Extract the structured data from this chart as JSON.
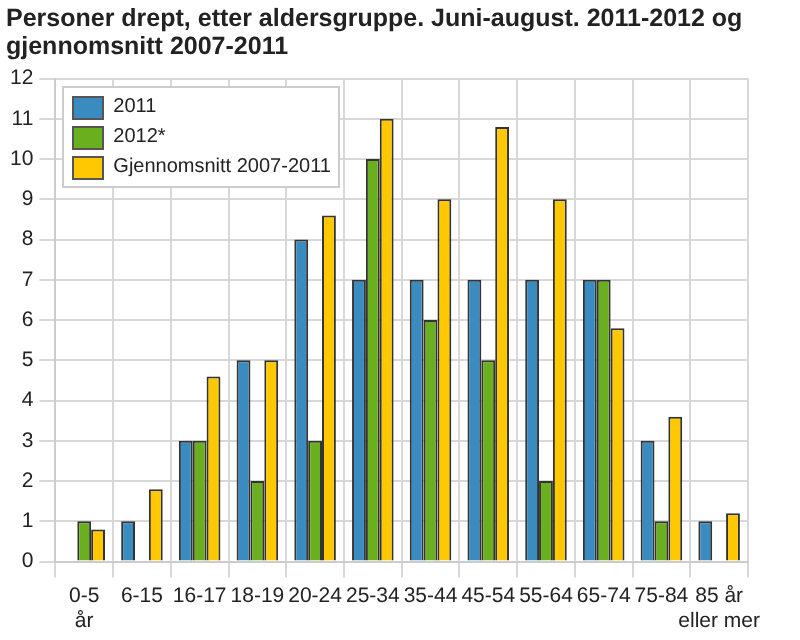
{
  "chart_data": {
    "type": "bar",
    "title": "Personer drept, etter aldersgruppe. Juni-august. 2011-2012 og gjennomsnitt 2007-2011",
    "categories": [
      "0-5\når",
      "6-15",
      "16-17",
      "18-19",
      "20-24",
      "25-34",
      "35-44",
      "45-54",
      "55-64",
      "65-74",
      "75-84",
      "85 år\neller mer"
    ],
    "series": [
      {
        "name": "2011",
        "color": "#3a8cc0",
        "values": [
          0,
          1,
          3,
          5,
          8,
          7,
          7,
          7,
          7,
          7,
          3,
          1
        ]
      },
      {
        "name": "2012*",
        "color": "#6aaf1e",
        "values": [
          1,
          0,
          3,
          2,
          3,
          10,
          6,
          5,
          2,
          7,
          1,
          0
        ]
      },
      {
        "name": "Gjennomsnitt 2007-2011",
        "color": "#ffc800",
        "values": [
          0.8,
          1.8,
          4.6,
          5,
          8.6,
          11,
          9,
          10.8,
          9,
          5.8,
          3.6,
          1.2
        ]
      }
    ],
    "ylim": [
      0,
      12
    ],
    "yticks": [
      0,
      1,
      2,
      3,
      4,
      5,
      6,
      7,
      8,
      9,
      10,
      11,
      12
    ],
    "grid": true,
    "legend": "top left"
  }
}
